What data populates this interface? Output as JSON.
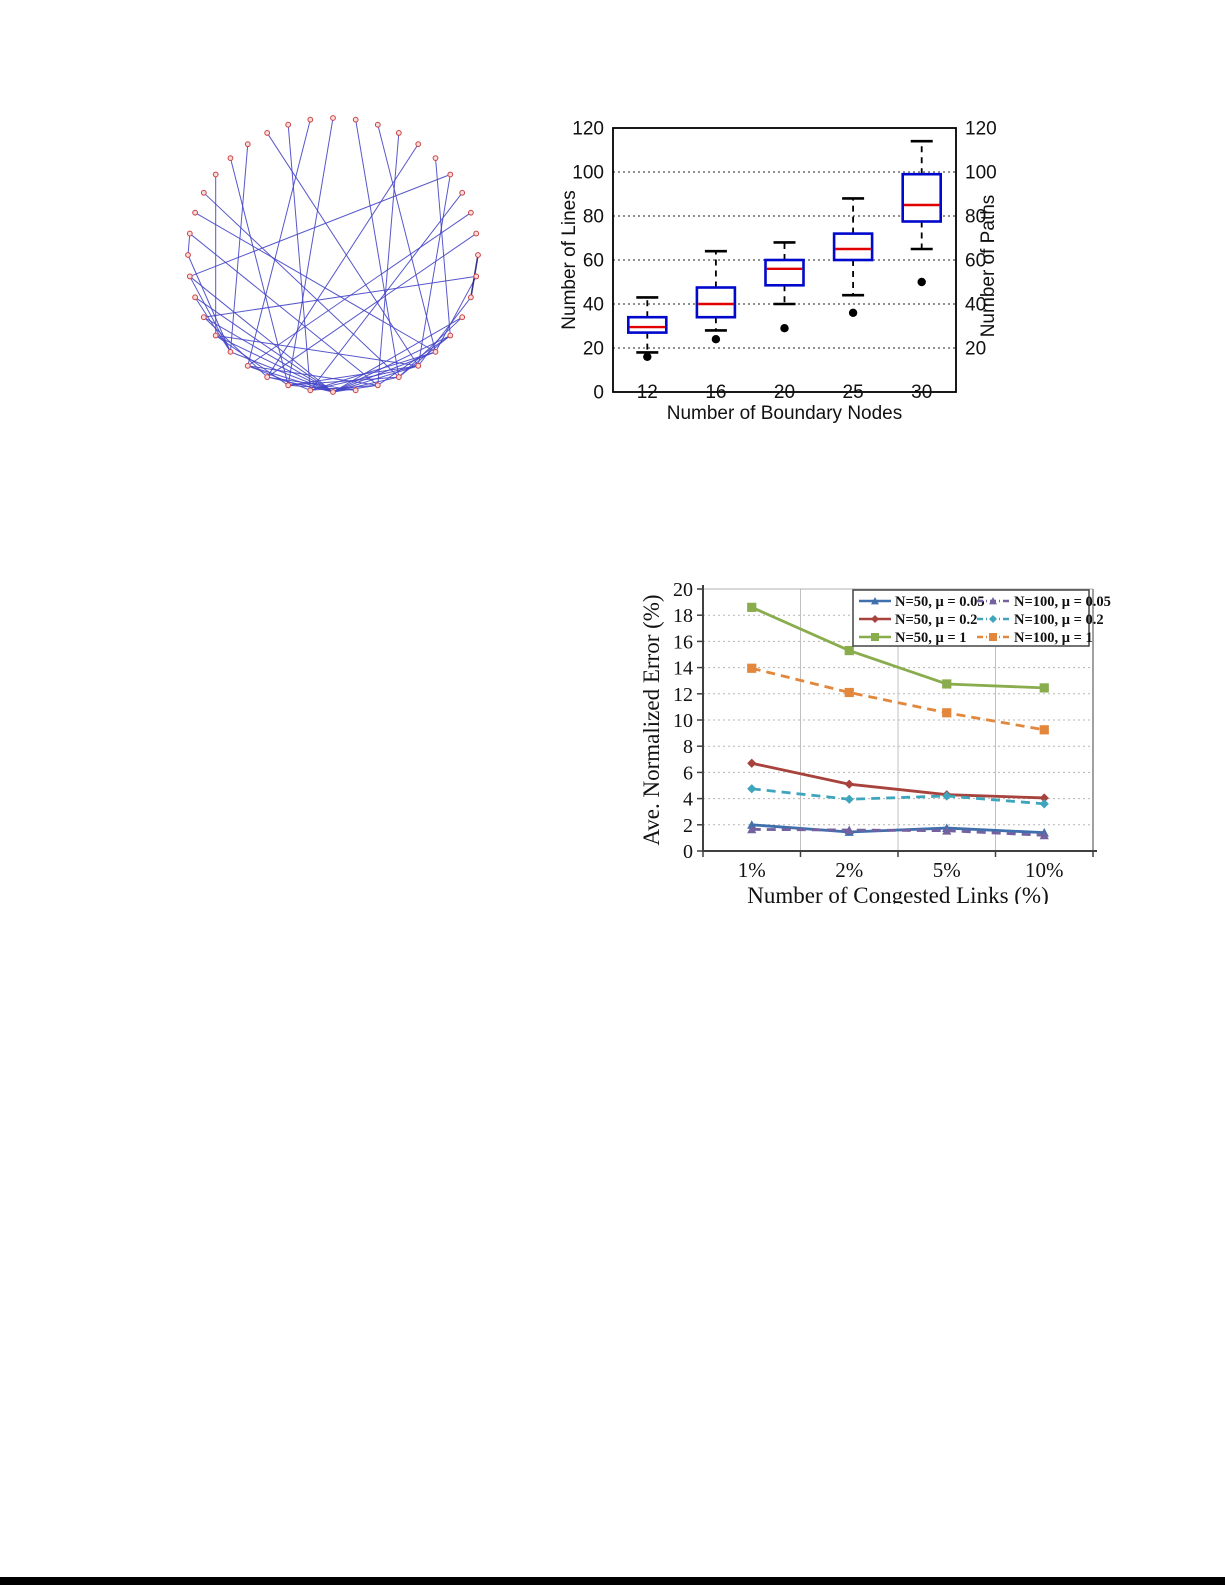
{
  "page": {
    "background": "#ffffff",
    "footer_bar_color": "#000000"
  },
  "network_graph": {
    "description": "circular-layout network graph with red nodes and blue edges",
    "node_count": 40,
    "node_stroke_color": "#cc4343",
    "node_fill_color": "#f9dcdc",
    "edge_color": "#4545c6",
    "dark_edge_color": "#1c1c78",
    "edges": [
      [
        0,
        3
      ],
      [
        0,
        4
      ],
      [
        0,
        5
      ],
      [
        0,
        6
      ],
      [
        0,
        7
      ],
      [
        0,
        8
      ],
      [
        0,
        9
      ],
      [
        0,
        33
      ],
      [
        0,
        34
      ],
      [
        0,
        35
      ],
      [
        0,
        36
      ],
      [
        0,
        37
      ],
      [
        0,
        38
      ],
      [
        1,
        38
      ],
      [
        2,
        37
      ],
      [
        1,
        36
      ],
      [
        3,
        39
      ],
      [
        2,
        6
      ],
      [
        34,
        38
      ],
      [
        1,
        4
      ],
      [
        32,
        36
      ],
      [
        5,
        8
      ],
      [
        31,
        35
      ],
      [
        3,
        7
      ],
      [
        33,
        37
      ],
      [
        2,
        39
      ],
      [
        4,
        38
      ],
      [
        6,
        36
      ],
      [
        1,
        35
      ],
      [
        2,
        36
      ],
      [
        34,
        37
      ],
      [
        10,
        11
      ],
      [
        5,
        9
      ],
      [
        20,
        2
      ],
      [
        21,
        37
      ],
      [
        19,
        4
      ],
      [
        22,
        35
      ],
      [
        18,
        1
      ],
      [
        23,
        38
      ],
      [
        17,
        36
      ],
      [
        24,
        3
      ],
      [
        16,
        5
      ],
      [
        25,
        34
      ],
      [
        15,
        2
      ],
      [
        26,
        36
      ],
      [
        14,
        6
      ],
      [
        27,
        1
      ],
      [
        13,
        37
      ],
      [
        28,
        4
      ],
      [
        12,
        35
      ],
      [
        29,
        3
      ],
      [
        11,
        38
      ],
      [
        10,
        5
      ],
      [
        31,
        7
      ],
      [
        9,
        26
      ]
    ],
    "dark_edges": [
      [
        30,
        32
      ]
    ]
  },
  "chart_data": [
    {
      "type": "box",
      "title": "",
      "xlabel": "Number of Boundary Nodes",
      "ylabel_left": "Number of Lines",
      "ylabel_right": "Number of Paths",
      "ylim": [
        0,
        120
      ],
      "yticks_left": [
        0,
        20,
        40,
        60,
        80,
        100,
        120
      ],
      "yticks_right": [
        20,
        40,
        60,
        80,
        100,
        120
      ],
      "grid": "horizontal dotted at 20,40,60,80,100",
      "categories": [
        "12",
        "16",
        "20",
        "25",
        "30"
      ],
      "boxes": [
        {
          "category": "12",
          "whisker_low": 18,
          "q1": 27,
          "median": 29.5,
          "q3": 34,
          "whisker_high": 43,
          "outliers": [
            16
          ]
        },
        {
          "category": "16",
          "whisker_low": 28,
          "q1": 34,
          "median": 40,
          "q3": 47.5,
          "whisker_high": 64,
          "outliers": [
            24
          ]
        },
        {
          "category": "20",
          "whisker_low": 40,
          "q1": 48.5,
          "median": 56,
          "q3": 60,
          "whisker_high": 68,
          "outliers": [
            29
          ]
        },
        {
          "category": "25",
          "whisker_low": 44,
          "q1": 60,
          "median": 65,
          "q3": 72,
          "whisker_high": 88,
          "outliers": [
            36
          ]
        },
        {
          "category": "30",
          "whisker_low": 65,
          "q1": 77.5,
          "median": 85,
          "q3": 99,
          "whisker_high": 114,
          "outliers": [
            50
          ]
        }
      ],
      "box_color": "#0008cc",
      "median_color": "#e00000",
      "whisker_color": "#000000",
      "outlier_color": "#000000"
    },
    {
      "type": "line",
      "title": "",
      "xlabel": "Number of Congested Links (%)",
      "ylabel": "Ave. Normalized Error (%)",
      "ylim": [
        0,
        20
      ],
      "ytick_step": 2,
      "yticks": [
        0,
        2,
        4,
        6,
        8,
        10,
        12,
        14,
        16,
        18,
        20
      ],
      "grid": "horizontal dotted every 2, vertical solid at category boundaries",
      "legend_position": "top-right",
      "legend_columns": 2,
      "categories": [
        "1%",
        "2%",
        "5%",
        "10%"
      ],
      "series": [
        {
          "name": "N=50, μ = 0.05",
          "color": "#3F6FAD",
          "style": "solid",
          "marker": "triangle",
          "values": [
            2.0,
            1.45,
            1.75,
            1.4
          ]
        },
        {
          "name": "N=50, μ = 0.2",
          "color": "#A8423C",
          "style": "solid",
          "marker": "diamond",
          "values": [
            6.7,
            5.1,
            4.3,
            4.05
          ]
        },
        {
          "name": "N=50, μ = 1",
          "color": "#89AC4D",
          "style": "solid",
          "marker": "square",
          "values": [
            18.6,
            15.3,
            12.75,
            12.45
          ]
        },
        {
          "name": "N=100, μ = 0.05",
          "color": "#74619F",
          "style": "dashed",
          "marker": "triangle",
          "values": [
            1.65,
            1.6,
            1.55,
            1.2
          ]
        },
        {
          "name": "N=100, μ = 0.2",
          "color": "#3FA5BC",
          "style": "dashed",
          "marker": "diamond",
          "values": [
            4.75,
            3.95,
            4.2,
            3.6
          ]
        },
        {
          "name": "N=100, μ = 1",
          "color": "#E2873B",
          "style": "dashed",
          "marker": "square",
          "values": [
            13.95,
            12.1,
            10.55,
            9.25
          ]
        }
      ],
      "legend_column1": [
        0,
        1,
        2
      ],
      "legend_column2": [
        3,
        4,
        5
      ],
      "draw_order": [
        2,
        5,
        1,
        4,
        0,
        3
      ]
    }
  ]
}
